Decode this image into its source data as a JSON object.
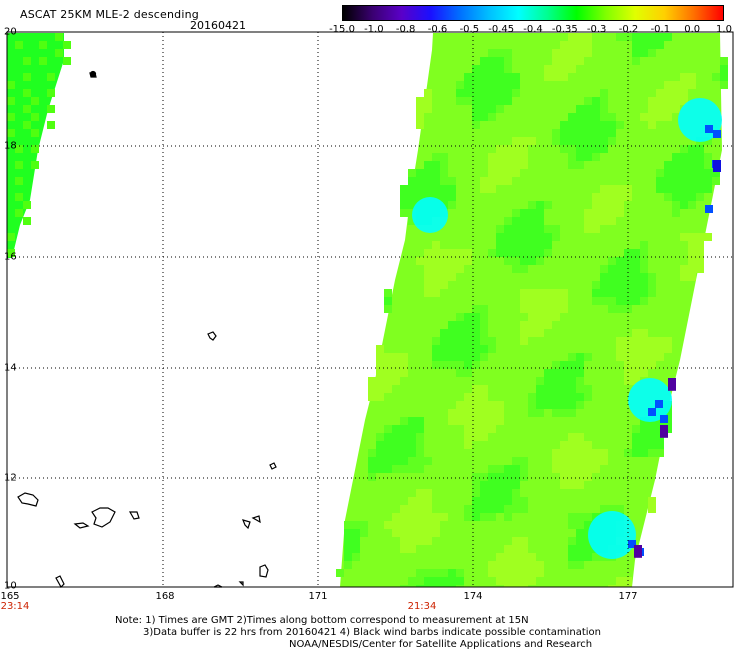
{
  "header": {
    "title": "ASCAT 25KM MLE-2 descending",
    "date": "20160421"
  },
  "colorbar": {
    "labels": [
      "-15.0",
      "-1.0",
      "-0.8",
      "-0.6",
      "-0.5",
      "-0.45",
      "-0.4",
      "-0.35",
      "-0.3",
      "-0.2",
      "-0.1",
      "0.0",
      "1.0"
    ],
    "colors": [
      "#000000",
      "#3a0070",
      "#5a00c8",
      "#1a10ff",
      "#0070ff",
      "#00c0ff",
      "#00ffff",
      "#00ff90",
      "#00ff00",
      "#80ff00",
      "#e0ff00",
      "#ffd000",
      "#ff7000",
      "#ff0000"
    ]
  },
  "axes": {
    "lat_labels": [
      "20",
      "18",
      "16",
      "14",
      "12",
      "10"
    ],
    "lon_labels": [
      "165",
      "168",
      "171",
      "174",
      "177"
    ],
    "lat_range": [
      10,
      20
    ],
    "lon_range": [
      165,
      178.8
    ]
  },
  "times": {
    "left": "23:14",
    "center": "21:34"
  },
  "colors": {
    "swath_main": "#80ff20",
    "swath_green": "#20ff20",
    "swath_cyan": "#00ffff",
    "swath_blue": "#0050ff",
    "swath_purple": "#5000a0",
    "time_label": "#cc2200"
  },
  "notes": {
    "line1": "Note: 1) Times are GMT 2)Times along bottom correspond to measurement at 15N",
    "line2": "3)Data buffer is 22 hrs from 20160421 4) Black wind barbs indicate possible contamination",
    "line3": "NOAA/NESDIS/Center for Satellite Applications and Research"
  }
}
